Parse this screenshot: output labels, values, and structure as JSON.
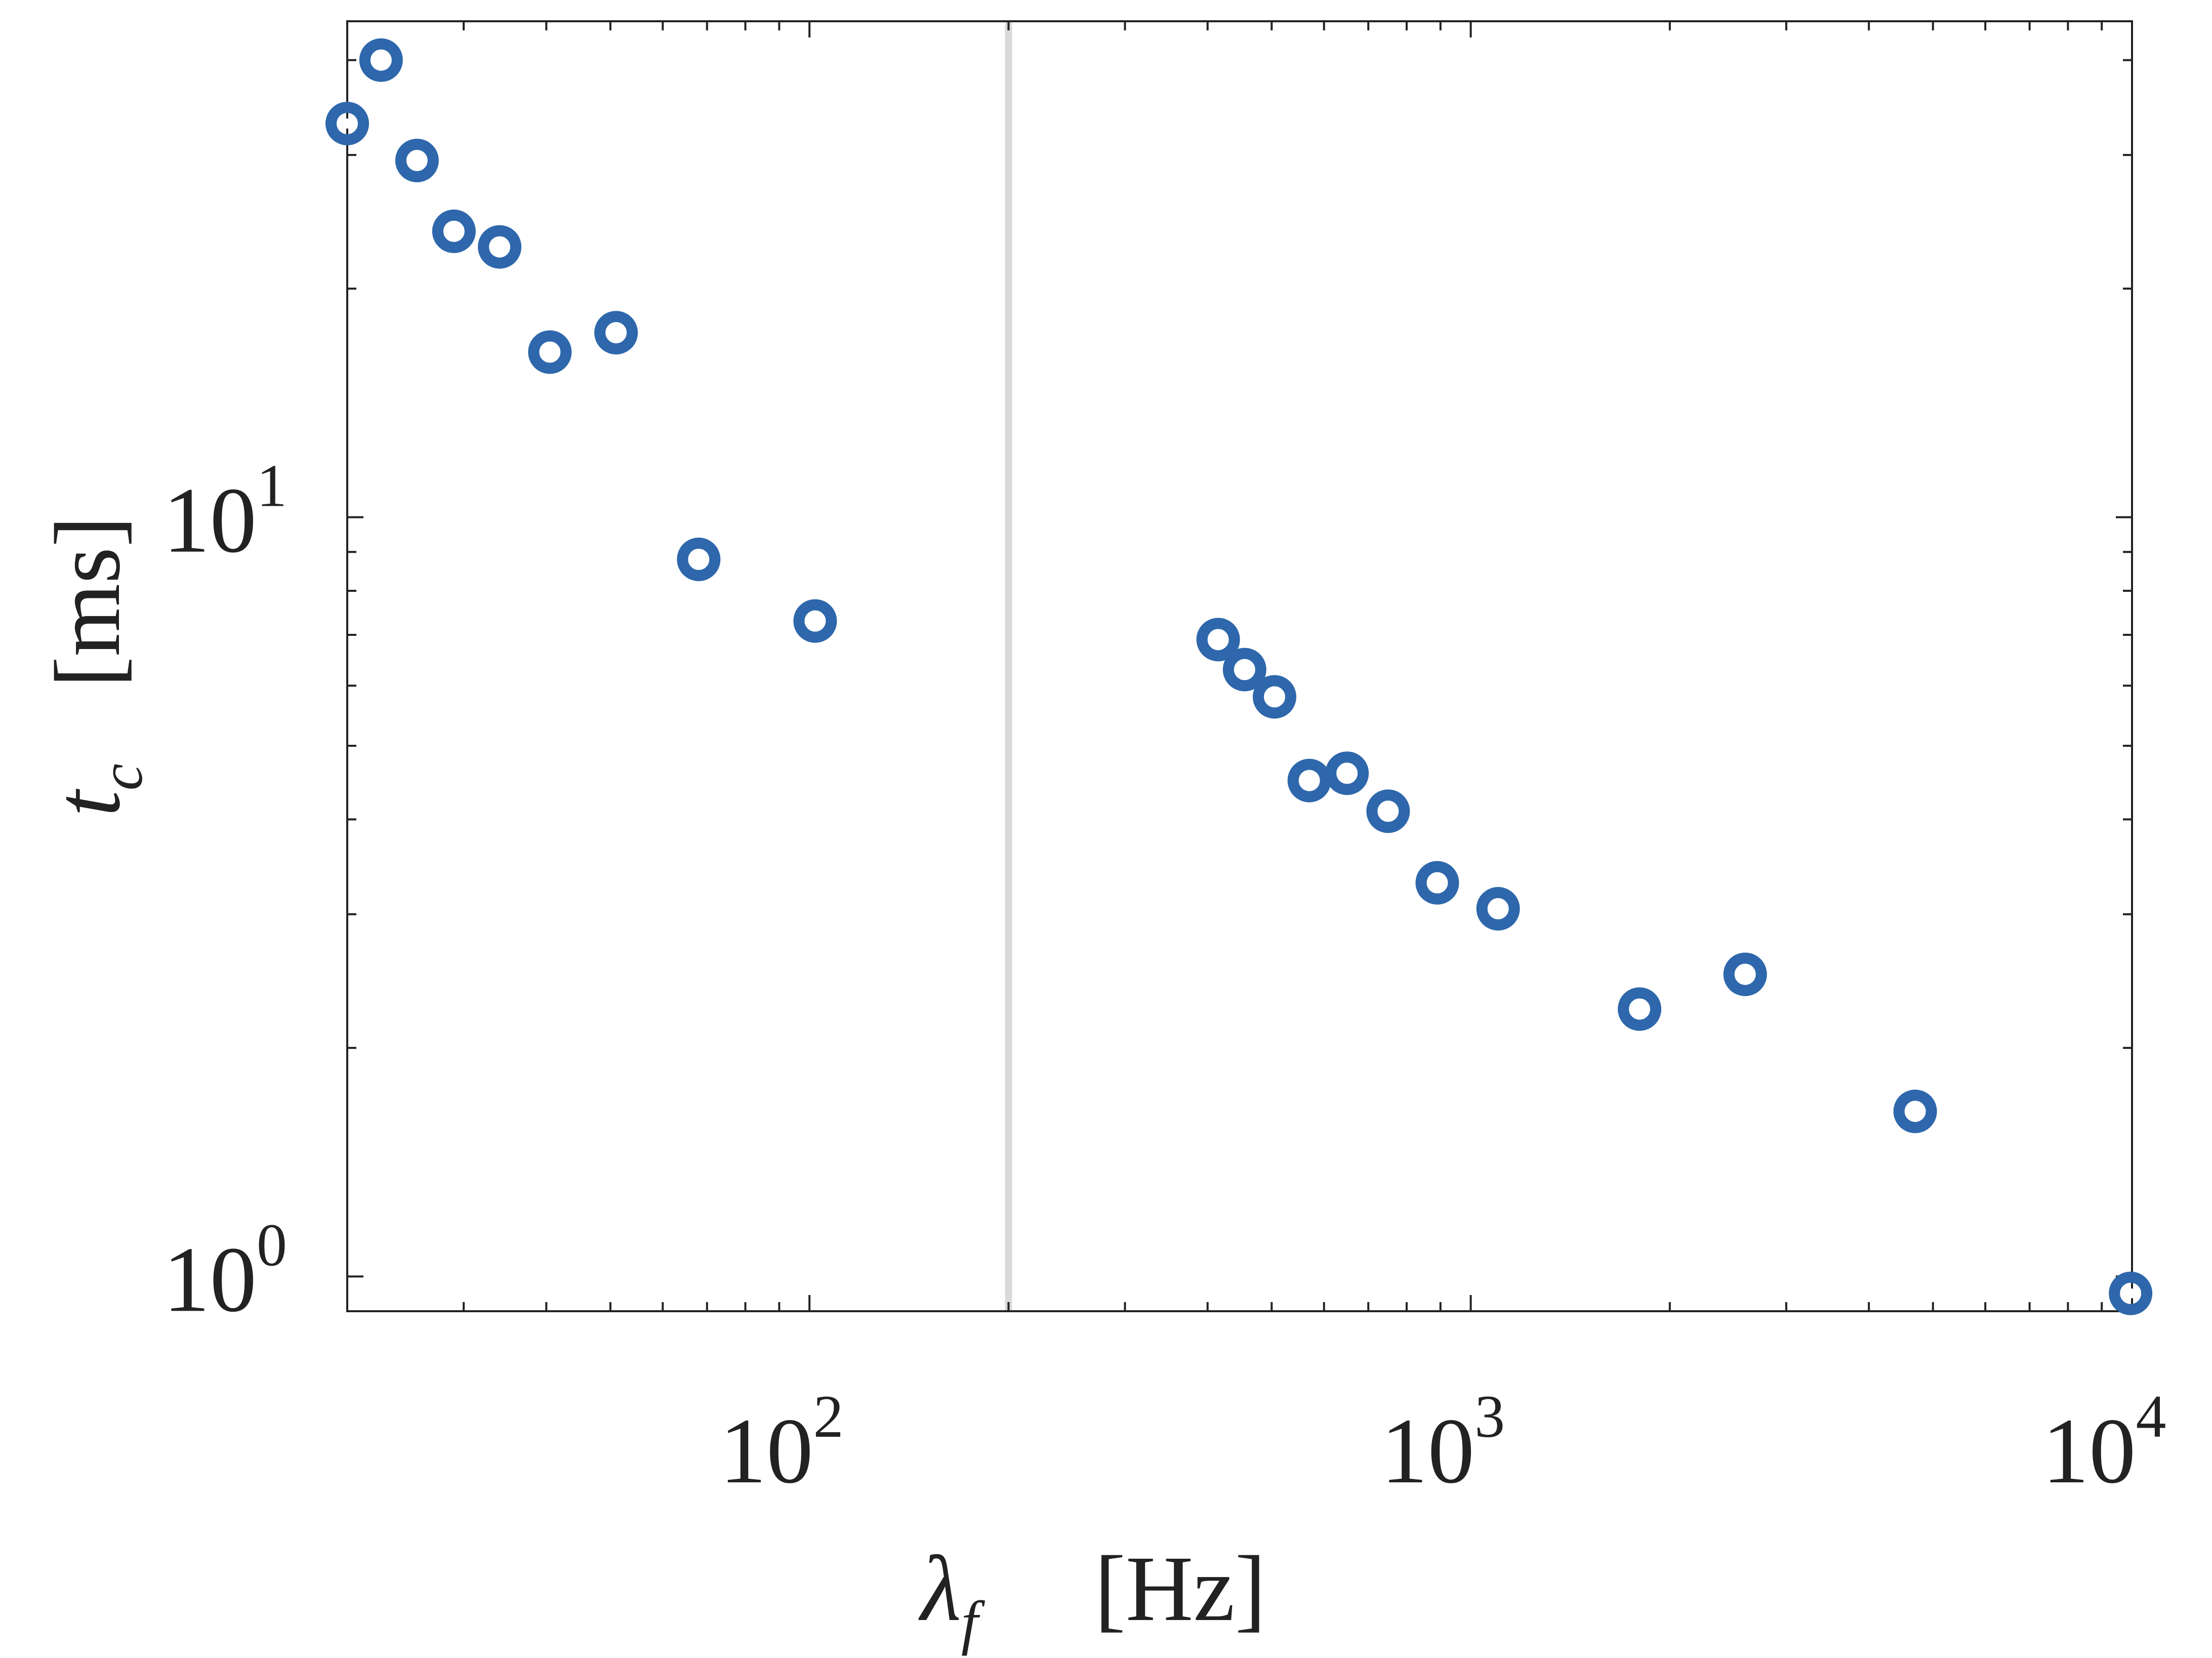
{
  "chart_data": {
    "type": "scatter",
    "xlabel": {
      "symbol": "λ",
      "subscript": "f",
      "unit": "[Hz]"
    },
    "ylabel": {
      "symbol": "t",
      "subscript": "c",
      "unit": "[ms]"
    },
    "x_scale": "log",
    "y_scale": "log",
    "xlim": [
      20,
      10000
    ],
    "ylim": [
      0.9,
      45
    ],
    "x_ticks": [
      {
        "value": 100,
        "base": "10",
        "exp": "2"
      },
      {
        "value": 1000,
        "base": "10",
        "exp": "3"
      },
      {
        "value": 10000,
        "base": "10",
        "exp": "4"
      }
    ],
    "y_ticks": [
      {
        "value": 1,
        "base": "10",
        "exp": "0"
      },
      {
        "value": 10,
        "base": "10",
        "exp": "1"
      }
    ],
    "grid": false,
    "reference_line": {
      "x": 200,
      "color": "#d9d9d9"
    },
    "marker": {
      "shape": "ring",
      "color": "#2e67ab",
      "center_color": "#ffffff"
    },
    "series": [
      {
        "points": [
          [
            20,
            33.0
          ],
          [
            22.5,
            40.0
          ],
          [
            25.5,
            29.5
          ],
          [
            29.0,
            23.8
          ],
          [
            34.0,
            22.7
          ],
          [
            40.5,
            16.5
          ],
          [
            51.0,
            17.5
          ],
          [
            68.0,
            8.8
          ],
          [
            102.0,
            7.3
          ],
          [
            415.0,
            6.9
          ],
          [
            455.0,
            6.3
          ],
          [
            505.0,
            5.8
          ],
          [
            570.0,
            4.5
          ],
          [
            650.0,
            4.6
          ],
          [
            750.0,
            4.1
          ],
          [
            890.0,
            3.3
          ],
          [
            1100.0,
            3.05
          ],
          [
            1800.0,
            2.25
          ],
          [
            2600.0,
            2.5
          ],
          [
            4700.0,
            1.65
          ],
          [
            9950.0,
            0.95
          ]
        ]
      }
    ]
  }
}
